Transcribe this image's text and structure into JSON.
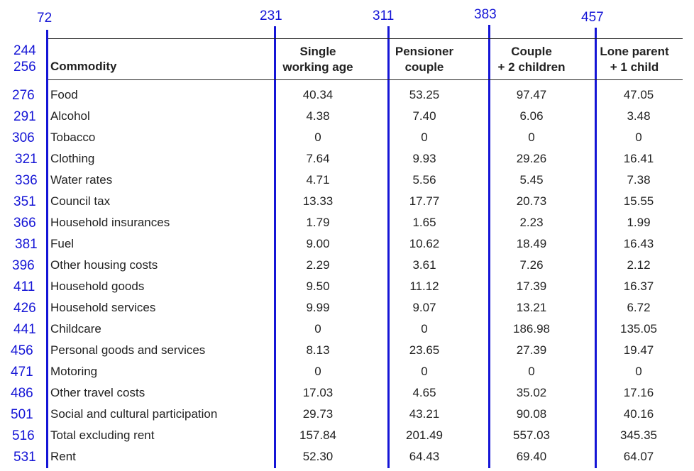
{
  "annotations": {
    "columns": [
      "72",
      "231",
      "311",
      "383",
      "457"
    ],
    "header_rows": [
      "244",
      "256"
    ],
    "body_rows": [
      "276",
      "291",
      "306",
      "321",
      "336",
      "351",
      "366",
      "381",
      "396",
      "411",
      "426",
      "441",
      "456",
      "471",
      "486",
      "501",
      "516",
      "531"
    ]
  },
  "table": {
    "commodity_header": "Commodity",
    "headers": [
      {
        "line1": "Single",
        "line2": "working age"
      },
      {
        "line1": "Pensioner",
        "line2": "couple"
      },
      {
        "line1": "Couple",
        "line2": "+ 2 children"
      },
      {
        "line1": "Lone parent",
        "line2": "+ 1 child"
      }
    ],
    "rows": [
      {
        "commodity": "Food",
        "values": [
          "40.34",
          "53.25",
          "97.47",
          "47.05"
        ]
      },
      {
        "commodity": "Alcohol",
        "values": [
          "4.38",
          "7.40",
          "6.06",
          "3.48"
        ]
      },
      {
        "commodity": "Tobacco",
        "values": [
          "0",
          "0",
          "0",
          "0"
        ]
      },
      {
        "commodity": "Clothing",
        "values": [
          "7.64",
          "9.93",
          "29.26",
          "16.41"
        ]
      },
      {
        "commodity": "Water rates",
        "values": [
          "4.71",
          "5.56",
          "5.45",
          "7.38"
        ]
      },
      {
        "commodity": "Council tax",
        "values": [
          "13.33",
          "17.77",
          "20.73",
          "15.55"
        ]
      },
      {
        "commodity": "Household insurances",
        "values": [
          "1.79",
          "1.65",
          "2.23",
          "1.99"
        ]
      },
      {
        "commodity": "Fuel",
        "values": [
          "9.00",
          "10.62",
          "18.49",
          "16.43"
        ]
      },
      {
        "commodity": "Other housing costs",
        "values": [
          "2.29",
          "3.61",
          "7.26",
          "2.12"
        ]
      },
      {
        "commodity": "Household goods",
        "values": [
          "9.50",
          "11.12",
          "17.39",
          "16.37"
        ]
      },
      {
        "commodity": "Household services",
        "values": [
          "9.99",
          "9.07",
          "13.21",
          "6.72"
        ]
      },
      {
        "commodity": "Childcare",
        "values": [
          "0",
          "0",
          "186.98",
          "135.05"
        ]
      },
      {
        "commodity": "Personal goods and services",
        "values": [
          "8.13",
          "23.65",
          "27.39",
          "19.47"
        ]
      },
      {
        "commodity": "Motoring",
        "values": [
          "0",
          "0",
          "0",
          "0"
        ]
      },
      {
        "commodity": "Other travel costs",
        "values": [
          "17.03",
          "4.65",
          "35.02",
          "17.16"
        ]
      },
      {
        "commodity": "Social and cultural participation",
        "values": [
          "29.73",
          "43.21",
          "90.08",
          "40.16"
        ]
      },
      {
        "commodity": "Total excluding rent",
        "values": [
          "157.84",
          "201.49",
          "557.03",
          "345.35"
        ]
      },
      {
        "commodity": "Rent",
        "values": [
          "52.30",
          "64.43",
          "69.40",
          "64.07"
        ]
      }
    ]
  },
  "colors": {
    "annotation_blue": "#1515d6",
    "text": "#222222",
    "rule": "#222222"
  }
}
